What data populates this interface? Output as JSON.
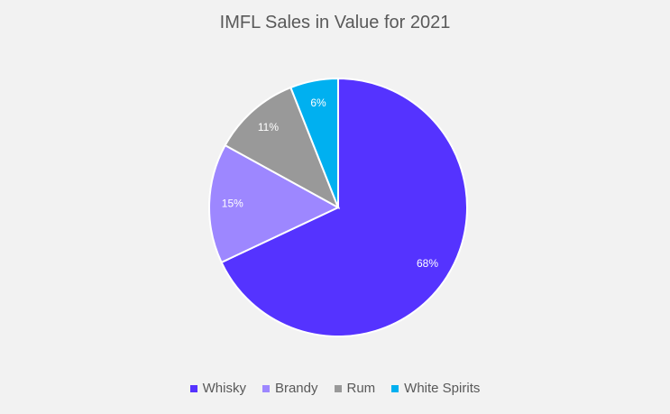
{
  "chart_data": {
    "type": "pie",
    "title": "IMFL Sales in Value for 2021",
    "categories": [
      "Whisky",
      "Brandy",
      "Rum",
      "White Spirits"
    ],
    "values": [
      68,
      15,
      11,
      6
    ],
    "data_labels": [
      "68%",
      "15%",
      "11%",
      "6%"
    ],
    "colors": [
      "#5533ff",
      "#9d87ff",
      "#999999",
      "#00b0f0"
    ],
    "legend_position": "bottom"
  }
}
